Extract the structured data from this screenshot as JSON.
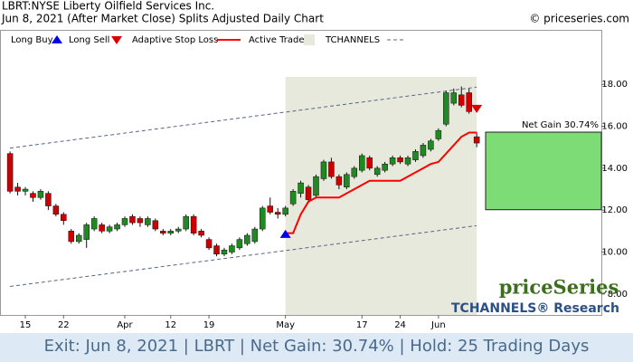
{
  "chart_data": {
    "type": "candlestick",
    "title": "LBRT:NYSE Liberty Oilfield Services Inc.",
    "subtitle": "Jun 8, 2021 (After Market Close)  Splits Adjusted Daily Chart",
    "source": "© priceseries.com",
    "categories": [
      null,
      null,
      "15",
      null,
      null,
      null,
      null,
      "22",
      null,
      null,
      null,
      null,
      null,
      null,
      null,
      "Apr",
      null,
      null,
      null,
      null,
      null,
      "12",
      null,
      null,
      null,
      null,
      "19",
      null,
      null,
      null,
      null,
      null,
      null,
      null,
      null,
      null,
      "May",
      null,
      null,
      null,
      null,
      null,
      null,
      null,
      null,
      null,
      "17",
      null,
      null,
      null,
      null,
      "24",
      null,
      null,
      null,
      null,
      "Jun",
      null,
      null,
      null,
      null,
      null
    ],
    "open": [
      14.7,
      13.1,
      12.9,
      12.8,
      12.6,
      12.8,
      12.2,
      11.8,
      11.0,
      10.5,
      10.6,
      11.1,
      11.3,
      11.0,
      11.1,
      11.3,
      11.7,
      11.6,
      11.3,
      11.5,
      11.0,
      10.9,
      11.0,
      11.1,
      11.7,
      11.0,
      10.6,
      10.3,
      9.9,
      10.0,
      10.2,
      10.4,
      10.5,
      11.1,
      12.2,
      11.9,
      11.8,
      12.3,
      12.8,
      13.1,
      12.7,
      13.5,
      14.3,
      13.6,
      13.1,
      13.6,
      13.9,
      14.5,
      13.7,
      13.9,
      14.2,
      14.5,
      14.2,
      14.4,
      14.6,
      14.9,
      15.4,
      16.1,
      17.1,
      17.5,
      17.6,
      15.5
    ],
    "high": [
      14.8,
      13.3,
      13.1,
      12.9,
      13.0,
      12.9,
      12.3,
      11.9,
      11.1,
      10.9,
      11.4,
      11.7,
      11.4,
      11.3,
      11.4,
      11.7,
      11.8,
      11.7,
      11.7,
      11.6,
      11.1,
      11.1,
      11.2,
      11.8,
      11.8,
      11.1,
      10.7,
      10.4,
      10.2,
      10.4,
      10.7,
      10.9,
      11.2,
      12.2,
      12.6,
      12.1,
      12.2,
      13.0,
      13.4,
      13.2,
      13.7,
      14.4,
      14.5,
      13.7,
      13.8,
      14.1,
      14.7,
      14.6,
      14.1,
      14.3,
      14.6,
      14.6,
      14.6,
      14.9,
      15.2,
      15.4,
      15.9,
      17.7,
      17.8,
      17.9,
      17.8,
      15.7
    ],
    "low": [
      12.8,
      12.7,
      12.7,
      12.4,
      12.5,
      12.0,
      11.7,
      11.3,
      10.4,
      10.4,
      10.2,
      11.0,
      10.9,
      10.9,
      11.0,
      11.2,
      11.3,
      11.2,
      11.2,
      11.0,
      10.8,
      10.8,
      10.9,
      11.0,
      10.8,
      10.7,
      10.1,
      9.8,
      9.8,
      9.9,
      10.1,
      10.3,
      10.4,
      11.0,
      11.8,
      11.6,
      11.7,
      12.2,
      12.6,
      12.4,
      12.6,
      13.4,
      13.5,
      13.0,
      13.0,
      13.5,
      13.8,
      13.9,
      13.6,
      13.8,
      14.1,
      14.2,
      14.1,
      14.3,
      14.5,
      14.8,
      15.3,
      16.0,
      17.0,
      16.9,
      16.6,
      15.0
    ],
    "close": [
      12.9,
      12.9,
      13.0,
      12.6,
      12.9,
      12.2,
      11.8,
      11.5,
      10.5,
      10.8,
      11.3,
      11.6,
      11.0,
      11.2,
      11.3,
      11.6,
      11.4,
      11.4,
      11.6,
      11.1,
      10.9,
      11.0,
      11.1,
      11.7,
      10.9,
      10.8,
      10.2,
      9.9,
      10.1,
      10.3,
      10.6,
      10.8,
      11.1,
      12.1,
      11.9,
      11.8,
      12.1,
      12.9,
      13.3,
      12.5,
      13.6,
      14.3,
      13.6,
      13.2,
      13.7,
      14.0,
      14.6,
      14.0,
      14.0,
      14.2,
      14.5,
      14.3,
      14.5,
      14.8,
      15.1,
      15.3,
      15.8,
      17.6,
      17.6,
      17.0,
      16.7,
      15.2
    ],
    "up_color": "#1f8a1f",
    "down_color": "#cc0000",
    "series": [
      {
        "name": "Long Buy",
        "color": "#0000ee",
        "marker": "triangle-up",
        "values": [
          null,
          null,
          null,
          null,
          null,
          null,
          null,
          null,
          null,
          null,
          null,
          null,
          null,
          null,
          null,
          null,
          null,
          null,
          null,
          null,
          null,
          null,
          null,
          null,
          null,
          null,
          null,
          null,
          null,
          null,
          null,
          null,
          null,
          null,
          null,
          null,
          10.85,
          null,
          null,
          null,
          null,
          null,
          null,
          null,
          null,
          null,
          null,
          null,
          null,
          null,
          null,
          null,
          null,
          null,
          null,
          null,
          null,
          null,
          null,
          null,
          null,
          null
        ]
      },
      {
        "name": "Long Sell",
        "color": "#dd0000",
        "marker": "triangle-down",
        "values": [
          null,
          null,
          null,
          null,
          null,
          null,
          null,
          null,
          null,
          null,
          null,
          null,
          null,
          null,
          null,
          null,
          null,
          null,
          null,
          null,
          null,
          null,
          null,
          null,
          null,
          null,
          null,
          null,
          null,
          null,
          null,
          null,
          null,
          null,
          null,
          null,
          null,
          null,
          null,
          null,
          null,
          null,
          null,
          null,
          null,
          null,
          null,
          null,
          null,
          null,
          null,
          null,
          null,
          null,
          null,
          null,
          null,
          null,
          null,
          null,
          null,
          16.85
        ]
      },
      {
        "name": "Adaptive Stop Loss",
        "color": "#ff0000",
        "values": [
          null,
          null,
          null,
          null,
          null,
          null,
          null,
          null,
          null,
          null,
          null,
          null,
          null,
          null,
          null,
          null,
          null,
          null,
          null,
          null,
          null,
          null,
          null,
          null,
          null,
          null,
          null,
          null,
          null,
          null,
          null,
          null,
          null,
          null,
          null,
          null,
          10.9,
          10.9,
          11.8,
          12.4,
          12.6,
          12.6,
          12.6,
          12.6,
          12.8,
          13.0,
          13.2,
          13.4,
          13.4,
          13.4,
          13.4,
          13.4,
          13.6,
          13.8,
          14.0,
          14.2,
          14.3,
          14.7,
          15.1,
          15.5,
          15.7,
          15.7
        ]
      }
    ],
    "active_trade": {
      "name": "Active Trade",
      "color": "#e7e9dc"
    },
    "channel": {
      "name": "TCHANNELS",
      "color": "#556688",
      "upper": [
        14.96,
        17.87
      ],
      "lower": [
        8.36,
        11.26
      ]
    },
    "net_gain": {
      "label": "Net Gain 30.74%",
      "range": [
        12.02,
        15.72
      ],
      "color": "#7ddc76"
    },
    "ylim": [
      7.0,
      20.6
    ],
    "yticks": [
      {
        "value": 8,
        "label": "8.00"
      },
      {
        "value": 10,
        "label": "10.00"
      },
      {
        "value": 12,
        "label": "12.00"
      },
      {
        "value": 14,
        "label": "14.00"
      },
      {
        "value": 16,
        "label": "16.00"
      },
      {
        "value": 18,
        "label": "18.00"
      }
    ],
    "brand": "priceSeries",
    "brand_sub": "TCHANNELS® Research",
    "footer": "Exit: Jun 8, 2021 | LBRT | Net Gain: 30.74% | Hold: 25 Trading Days"
  }
}
